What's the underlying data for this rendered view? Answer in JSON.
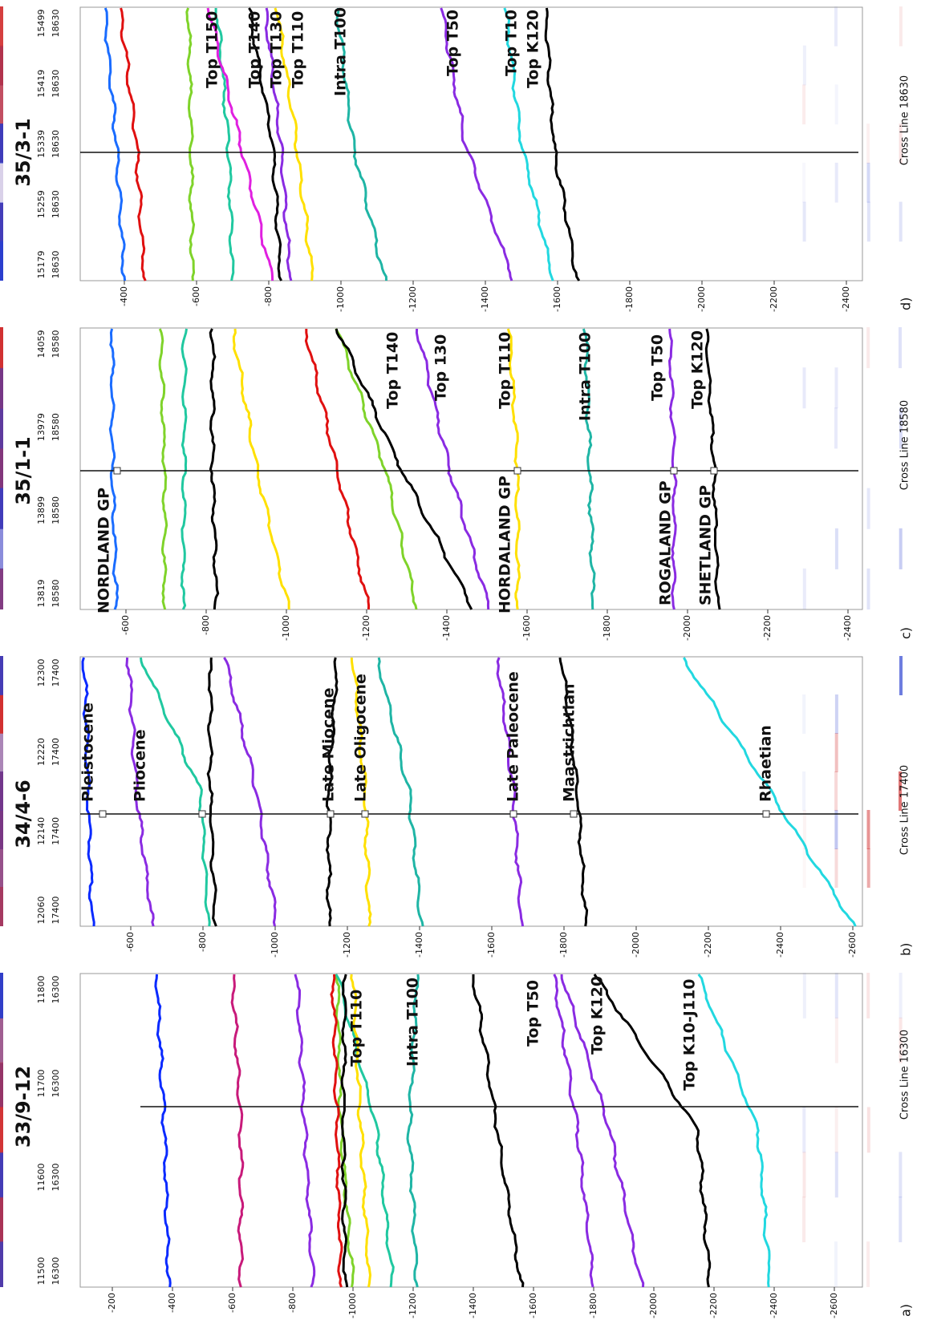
{
  "panels": [
    {
      "label": "a)",
      "well": "33/9-12",
      "cross_line": "Cross Line 16300",
      "traces": [
        {
          "inline": "11500",
          "crossline": "16300"
        },
        {
          "inline": "11600",
          "crossline": "16300"
        },
        {
          "inline": "11700",
          "crossline": "16300"
        },
        {
          "inline": "11800",
          "crossline": "16300"
        }
      ],
      "depth_ticks": [
        "-200",
        "-400",
        "-600",
        "-800",
        "-1000",
        "-1200",
        "-1400",
        "-1600",
        "-1800",
        "-2000",
        "-2200",
        "-2400",
        "-2600"
      ],
      "horizons": [
        "Top T110",
        "Intra T100",
        "Top T50",
        "Top K120",
        "Top K10-J110"
      ]
    },
    {
      "label": "b)",
      "well": "34/4-6",
      "cross_line": "Cross Line 17400",
      "traces": [
        {
          "inline": "12060",
          "crossline": "17400"
        },
        {
          "inline": "12140",
          "crossline": "17400"
        },
        {
          "inline": "12220",
          "crossline": "17400"
        },
        {
          "inline": "12300",
          "crossline": "17400"
        }
      ],
      "depth_ticks": [
        "-600",
        "-800",
        "-1000",
        "-1200",
        "-1400",
        "-1600",
        "-1800",
        "-2000",
        "-2200",
        "-2400",
        "-2600"
      ],
      "horizons": [
        "Pleistocene",
        "Pliocene",
        "Late Miocene",
        "Late Oligocene",
        "Late Paleocene",
        "Maastrichtian",
        "Rhaetian"
      ]
    },
    {
      "label": "c)",
      "well": "35/1-1",
      "cross_line": "Cross Line 18580",
      "traces": [
        {
          "inline": "13819",
          "crossline": "18580"
        },
        {
          "inline": "13899",
          "crossline": "18580"
        },
        {
          "inline": "13979",
          "crossline": "18580"
        },
        {
          "inline": "14059",
          "crossline": "18580"
        }
      ],
      "depth_ticks": [
        "-600",
        "-800",
        "-1000",
        "-1200",
        "-1400",
        "-1600",
        "-1800",
        "-2000",
        "-2200",
        "-2400"
      ],
      "formations": [
        "NORDLAND GP",
        "HORDALAND GP",
        "ROGALAND GP",
        "SHETLAND GP"
      ],
      "horizons": [
        "Top T140",
        "Top 130",
        "Top T110",
        "Intra T100",
        "Top T50",
        "Top K120"
      ]
    },
    {
      "label": "d)",
      "well": "35/3-1",
      "cross_line": "Cross Line 18630",
      "traces": [
        {
          "inline": "15179",
          "crossline": "18630"
        },
        {
          "inline": "15259",
          "crossline": "18630"
        },
        {
          "inline": "15339",
          "crossline": "18630"
        },
        {
          "inline": "15419",
          "crossline": "18630"
        },
        {
          "inline": "15499",
          "crossline": "18630"
        }
      ],
      "depth_ticks": [
        "-400",
        "-600",
        "-800",
        "-1000",
        "-1200",
        "-1400",
        "-1600",
        "-1800",
        "-2000",
        "-2200",
        "-2400"
      ],
      "horizons": [
        "Top T150",
        "Top T140",
        "Top T130",
        "Top T110",
        "Intra T100",
        "Top T50",
        "Top T10",
        "Top K120"
      ]
    }
  ]
}
